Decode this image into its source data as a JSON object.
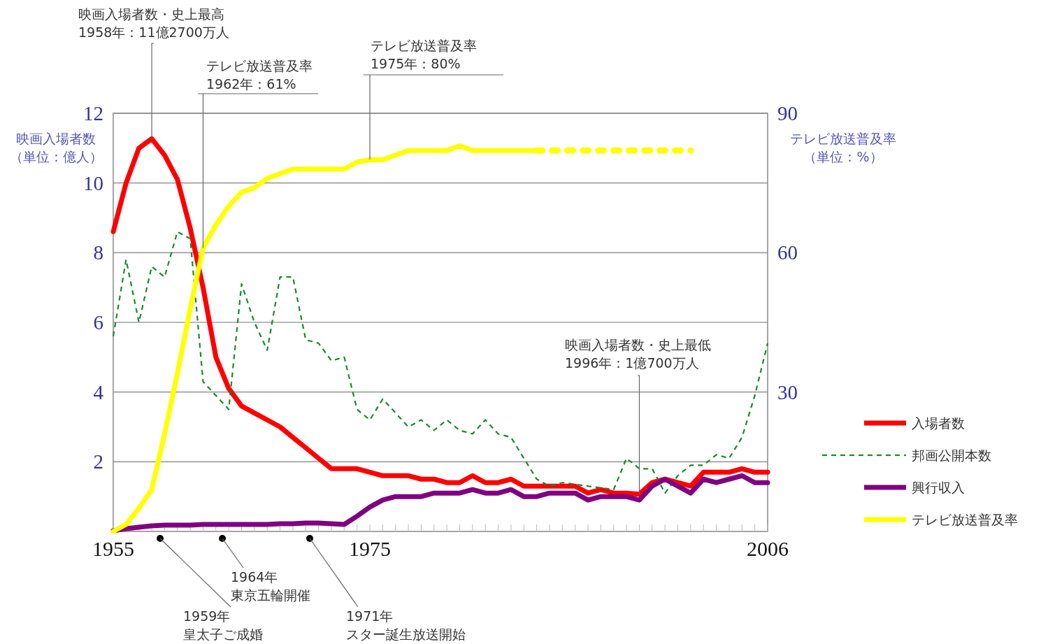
{
  "chart_data": {
    "type": "line",
    "x": [
      1955,
      1956,
      1957,
      1958,
      1959,
      1960,
      1961,
      1962,
      1963,
      1964,
      1965,
      1966,
      1967,
      1968,
      1969,
      1970,
      1971,
      1972,
      1973,
      1974,
      1975,
      1976,
      1977,
      1978,
      1979,
      1980,
      1981,
      1982,
      1983,
      1984,
      1985,
      1986,
      1987,
      1988,
      1989,
      1990,
      1991,
      1992,
      1993,
      1994,
      1995,
      1996,
      1997,
      1998,
      1999,
      2000,
      2001,
      2002,
      2003,
      2004,
      2005,
      2006
    ],
    "series": [
      {
        "name": "入場者数",
        "color": "#ff0000",
        "line_style": "solid",
        "values": [
          8.6,
          10.0,
          11.0,
          11.27,
          10.8,
          10.1,
          8.7,
          7.0,
          5.0,
          4.1,
          3.6,
          3.4,
          3.2,
          3.0,
          2.7,
          2.4,
          2.1,
          1.8,
          1.8,
          1.8,
          1.7,
          1.6,
          1.6,
          1.6,
          1.5,
          1.5,
          1.4,
          1.4,
          1.6,
          1.4,
          1.4,
          1.5,
          1.3,
          1.3,
          1.3,
          1.3,
          1.3,
          1.1,
          1.2,
          1.1,
          1.1,
          1.07,
          1.4,
          1.5,
          1.4,
          1.3,
          1.7,
          1.7,
          1.7,
          1.8,
          1.7,
          1.7
        ]
      },
      {
        "name": "邦画公開本数",
        "color": "#1a8a2a",
        "line_style": "dashed",
        "values": [
          5.6,
          7.8,
          6.0,
          7.6,
          7.3,
          8.6,
          8.4,
          4.3,
          3.9,
          3.5,
          7.1,
          6.0,
          5.2,
          7.3,
          7.3,
          5.5,
          5.4,
          4.9,
          5.0,
          3.5,
          3.2,
          3.8,
          3.4,
          3.0,
          3.2,
          2.9,
          3.2,
          2.9,
          2.8,
          3.2,
          2.8,
          2.7,
          2.1,
          1.5,
          1.3,
          1.4,
          1.35,
          1.3,
          1.25,
          1.2,
          2.1,
          1.8,
          1.8,
          1.1,
          1.6,
          1.9,
          1.9,
          2.2,
          2.1,
          2.7,
          3.9,
          5.4
        ]
      },
      {
        "name": "興行収入",
        "color": "#800080",
        "line_style": "solid",
        "values": [
          0.02,
          0.08,
          0.12,
          0.16,
          0.18,
          0.18,
          0.18,
          0.2,
          0.2,
          0.2,
          0.2,
          0.2,
          0.2,
          0.22,
          0.22,
          0.24,
          0.24,
          0.22,
          0.2,
          0.44,
          0.7,
          0.9,
          1.0,
          1.0,
          1.0,
          1.1,
          1.1,
          1.1,
          1.2,
          1.1,
          1.1,
          1.2,
          1.0,
          1.0,
          1.1,
          1.1,
          1.1,
          0.9,
          1.0,
          1.0,
          1.0,
          0.9,
          1.3,
          1.5,
          1.3,
          1.1,
          1.5,
          1.4,
          1.5,
          1.6,
          1.4,
          1.4
        ]
      },
      {
        "name": "テレビ放送普及率",
        "color": "#ffff00",
        "line_style": "solid",
        "axis": "y2",
        "x": [
          1955,
          1956,
          1957,
          1958,
          1959,
          1960,
          1961,
          1962,
          1963,
          1964,
          1965,
          1966,
          1967,
          1968,
          1969,
          1970,
          1971,
          1972,
          1973,
          1974,
          1975,
          1976,
          1977,
          1978,
          1979,
          1980,
          1981,
          1982,
          1983,
          1984,
          1985,
          1986,
          1987,
          1988
        ],
        "values": [
          0,
          1.5,
          5,
          9,
          21,
          34,
          48,
          61,
          66,
          70,
          73,
          74,
          76,
          77,
          78,
          78,
          78,
          78,
          78,
          79.5,
          80,
          80,
          81,
          82,
          82,
          82,
          82,
          83,
          82,
          82,
          82,
          82,
          82,
          82
        ]
      },
      {
        "color": "#ffff00",
        "line_style": "dotted",
        "axis": "y2",
        "x": [
          1988,
          1989,
          1990,
          1991,
          1992,
          1993,
          1994,
          1995,
          1996,
          1997,
          1998,
          1999,
          2000
        ],
        "values": [
          82,
          82,
          82,
          82,
          82,
          82,
          82,
          82,
          82,
          82,
          82,
          82,
          82
        ]
      }
    ],
    "xlim": [
      1955,
      2006
    ],
    "xticks": [
      1955,
      {
        "value": 1956,
        "label": null
      },
      {
        "value": 1957,
        "label": null
      },
      {
        "value": 1958,
        "label": null
      },
      {
        "value": 1959,
        "label": null
      },
      {
        "value": 1960,
        "label": null
      },
      {
        "value": 1961,
        "label": null
      },
      {
        "value": 1962,
        "label": null
      },
      {
        "value": 1963,
        "label": null
      },
      {
        "value": 1964,
        "label": null
      },
      {
        "value": 1965,
        "label": null
      },
      {
        "value": 1966,
        "label": null
      },
      {
        "value": 1967,
        "label": null
      },
      {
        "value": 1968,
        "label": null
      },
      {
        "value": 1969,
        "label": null
      },
      {
        "value": 1970,
        "label": null
      },
      {
        "value": 1971,
        "label": null
      },
      {
        "value": 1972,
        "label": null
      },
      {
        "value": 1973,
        "label": null
      },
      {
        "value": 1974,
        "label": null
      },
      1975,
      {
        "value": 1976,
        "label": null
      },
      {
        "value": 1977,
        "label": null
      },
      {
        "value": 1978,
        "label": null
      },
      {
        "value": 1979,
        "label": null
      },
      {
        "value": 1980,
        "label": null
      },
      {
        "value": 1981,
        "label": null
      },
      {
        "value": 1982,
        "label": null
      },
      {
        "value": 1983,
        "label": null
      },
      {
        "value": 1984,
        "label": null
      },
      {
        "value": 1985,
        "label": null
      },
      {
        "value": 1986,
        "label": null
      },
      {
        "value": 1987,
        "label": null
      },
      {
        "value": 1988,
        "label": null
      },
      {
        "value": 1989,
        "label": null
      },
      {
        "value": 1990,
        "label": null
      },
      {
        "value": 1991,
        "label": null
      },
      {
        "value": 1992,
        "label": null
      },
      {
        "value": 1993,
        "label": null
      },
      {
        "value": 1994,
        "label": null
      },
      {
        "value": 1995,
        "label": null
      },
      {
        "value": 1996,
        "label": null
      },
      {
        "value": 1997,
        "label": null
      },
      {
        "value": 1998,
        "label": null
      },
      {
        "value": 1999,
        "label": null
      },
      {
        "value": 2000,
        "label": null
      },
      {
        "value": 2001,
        "label": null
      },
      {
        "value": 2002,
        "label": null
      },
      {
        "value": 2003,
        "label": null
      },
      {
        "value": 2004,
        "label": null
      },
      {
        "value": 2005,
        "label": null
      },
      2006
    ],
    "ylim": [
      0,
      12
    ],
    "yticks": [
      2,
      4,
      6,
      8,
      10,
      12
    ],
    "y2lim": [
      0,
      90
    ],
    "y2ticks": [
      30,
      60,
      90
    ],
    "ylabel": "映画入場者数（単位：億人）",
    "y2label": "テレビ放送普及率（単位：%）",
    "grid": "y",
    "legend": "right",
    "marker": "none",
    "annotations": [
      {
        "text": "映画入場者数・史上最高\n1958年：11億2700万人",
        "x": 1958,
        "y": 11.27
      },
      {
        "text": "テレビ放送普及率\n1962年：61%",
        "x": 1962,
        "y": 8.13
      },
      {
        "text": "テレビ放送普及率\n1975年：80%",
        "x": 1975,
        "y": 10.67
      },
      {
        "text": "映画入場者数・史上最低\n1996年：1億700万人",
        "x": 1996,
        "y": 1.07
      },
      "1959年皇太子ご成婚",
      "1964年東京五輪開催",
      "1971年スター誕生放送開始"
    ]
  }
}
